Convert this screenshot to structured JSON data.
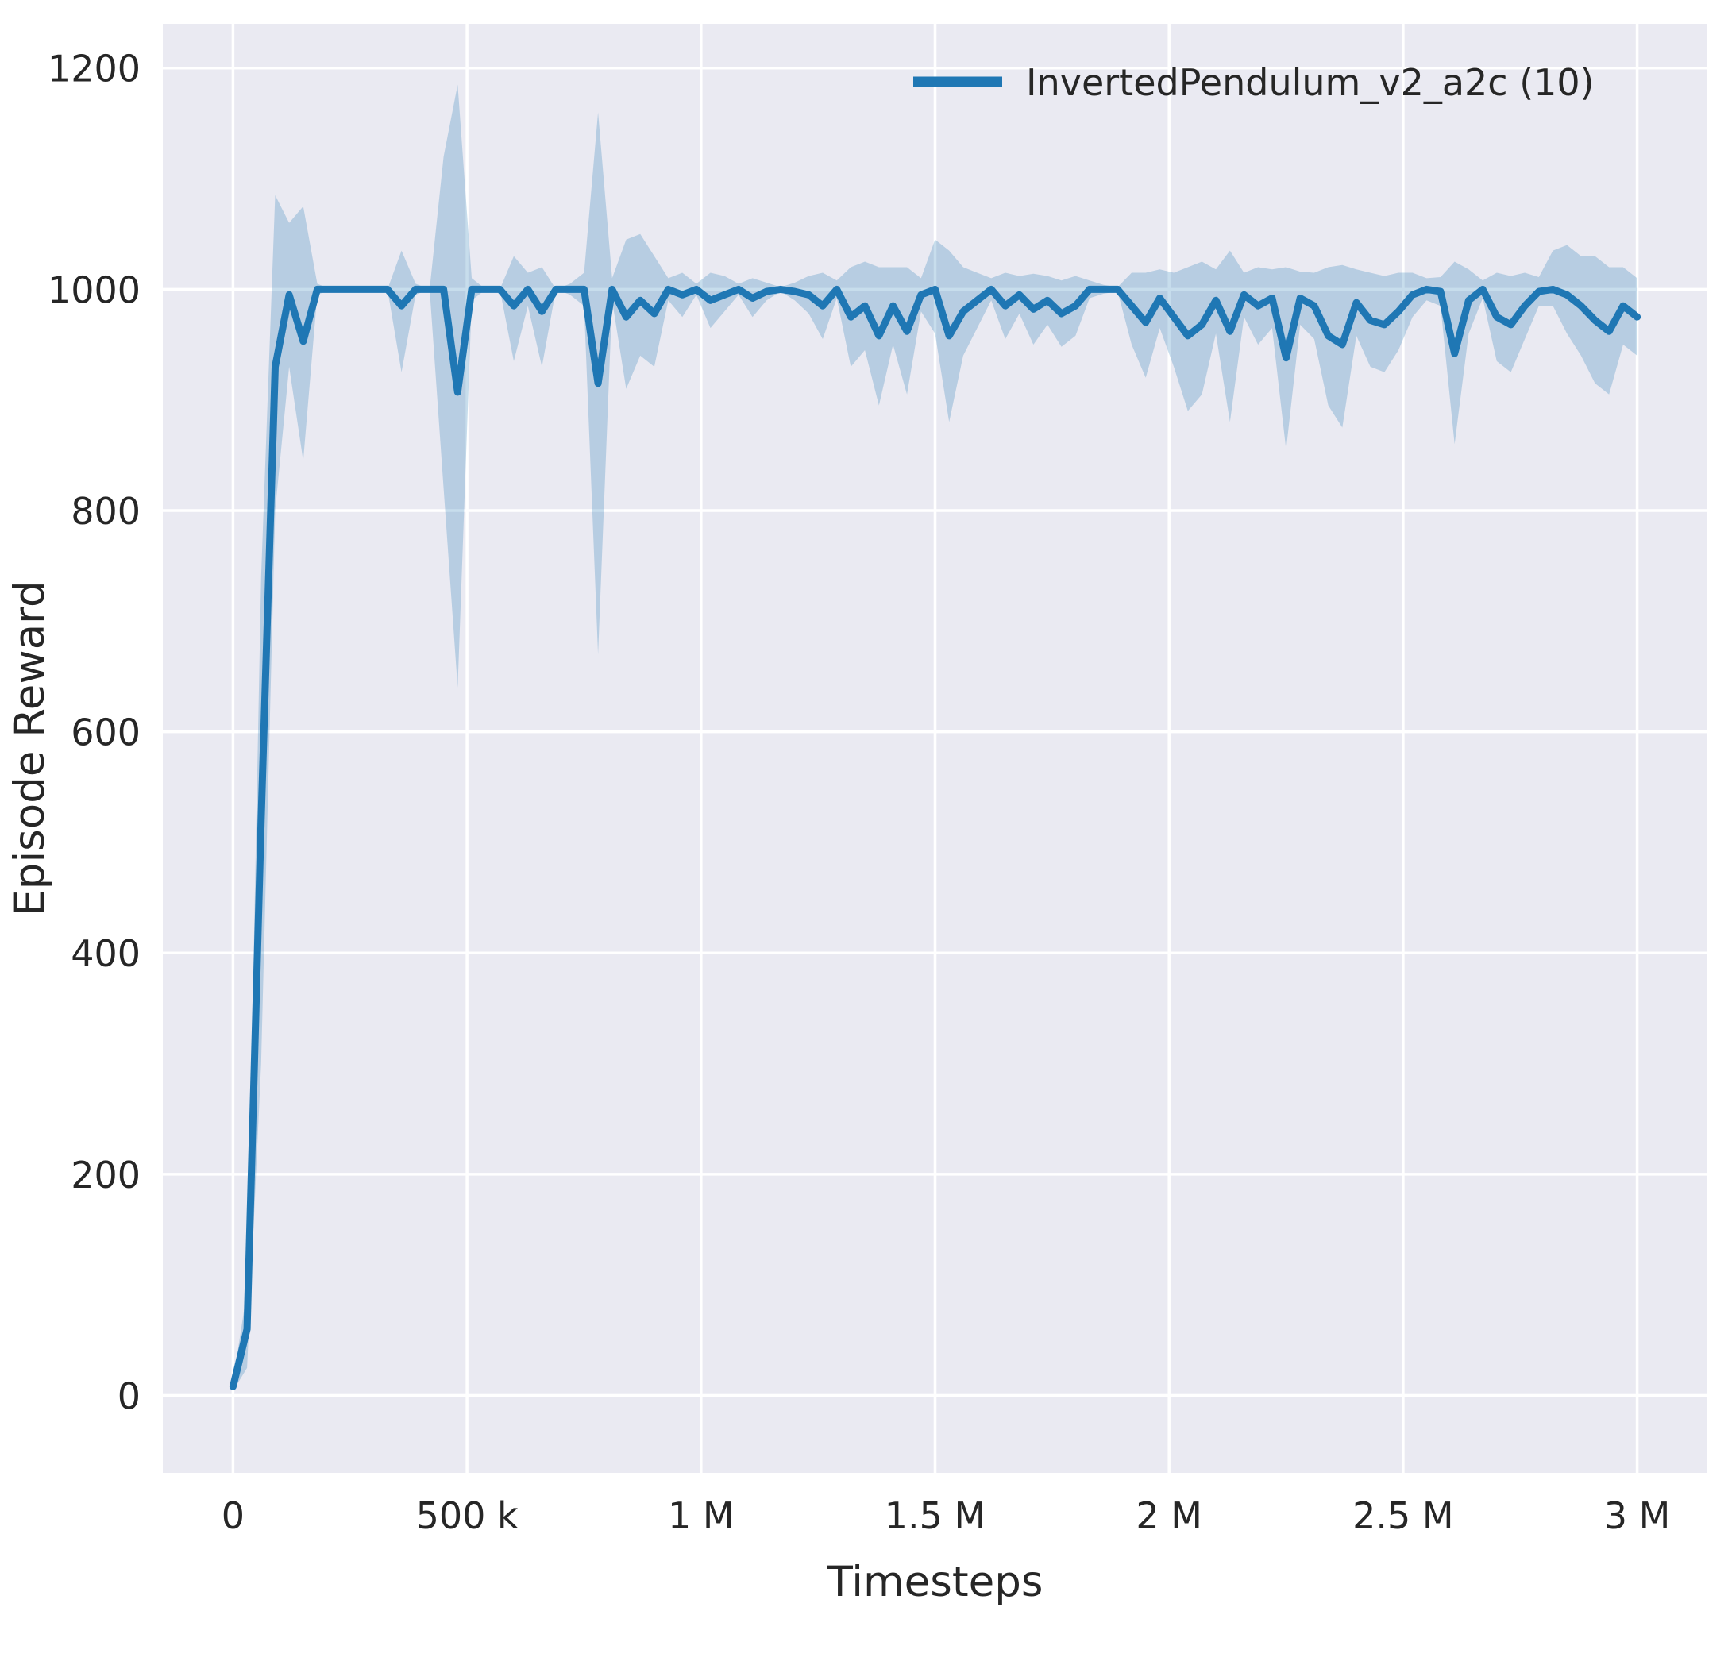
{
  "figure": {
    "background": "#ffffff",
    "plot_background": "#eaeaf2",
    "grid_color": "#ffffff",
    "text_color": "#262626",
    "line_color": "#1f77b4",
    "band_alpha": 0.25
  },
  "chart_data": {
    "type": "line",
    "title": "",
    "xlabel": "Timesteps",
    "ylabel": "Episode Reward",
    "grid": true,
    "legend_position": "upper right",
    "legend": [
      {
        "label": "InvertedPendulum_v2_a2c (10)",
        "color": "#1f77b4"
      }
    ],
    "xlim": [
      -150000,
      3150000
    ],
    "ylim": [
      -70,
      1240
    ],
    "x_ticks": [
      0,
      500000,
      1000000,
      1500000,
      2000000,
      2500000,
      3000000
    ],
    "x_tick_labels": [
      "0",
      "500 k",
      "1 M",
      "1.5 M",
      "2 M",
      "2.5 M",
      "3 M"
    ],
    "y_ticks": [
      0,
      200,
      400,
      600,
      800,
      1000,
      1200
    ],
    "y_tick_labels": [
      "0",
      "200",
      "400",
      "600",
      "800",
      "1000",
      "1200"
    ],
    "series": [
      {
        "name": "InvertedPendulum_v2_a2c (10)",
        "x": [
          0,
          30000,
          60000,
          90000,
          120000,
          150000,
          180000,
          210000,
          240000,
          270000,
          300000,
          330000,
          360000,
          390000,
          420000,
          450000,
          480000,
          510000,
          540000,
          570000,
          600000,
          630000,
          660000,
          690000,
          720000,
          750000,
          780000,
          810000,
          840000,
          870000,
          900000,
          930000,
          960000,
          990000,
          1020000,
          1050000,
          1080000,
          1110000,
          1140000,
          1170000,
          1200000,
          1230000,
          1260000,
          1290000,
          1320000,
          1350000,
          1380000,
          1410000,
          1440000,
          1470000,
          1500000,
          1530000,
          1560000,
          1590000,
          1620000,
          1650000,
          1680000,
          1710000,
          1740000,
          1770000,
          1800000,
          1830000,
          1860000,
          1890000,
          1920000,
          1950000,
          1980000,
          2010000,
          2040000,
          2070000,
          2100000,
          2130000,
          2160000,
          2190000,
          2220000,
          2250000,
          2280000,
          2310000,
          2340000,
          2370000,
          2400000,
          2430000,
          2460000,
          2490000,
          2520000,
          2550000,
          2580000,
          2610000,
          2640000,
          2670000,
          2700000,
          2730000,
          2760000,
          2790000,
          2820000,
          2850000,
          2880000,
          2910000,
          2940000,
          2970000,
          3000000
        ],
        "mean": [
          8,
          60,
          520,
          930,
          995,
          953,
          1000,
          1000,
          1000,
          1000,
          1000,
          1000,
          985,
          1000,
          1000,
          1000,
          907,
          1000,
          1000,
          1000,
          985,
          1000,
          980,
          1000,
          1000,
          1000,
          915,
          1000,
          975,
          990,
          978,
          1000,
          995,
          1000,
          990,
          995,
          1000,
          992,
          998,
          1000,
          998,
          995,
          985,
          1000,
          975,
          985,
          958,
          985,
          962,
          995,
          1000,
          958,
          980,
          990,
          1000,
          985,
          995,
          982,
          990,
          978,
          985,
          1000,
          1000,
          1000,
          985,
          970,
          992,
          975,
          958,
          968,
          990,
          962,
          995,
          985,
          992,
          938,
          992,
          985,
          958,
          950,
          988,
          972,
          968,
          980,
          995,
          1000,
          998,
          942,
          990,
          1000,
          975,
          968,
          985,
          998,
          1000,
          995,
          985,
          972,
          962,
          985,
          975
        ],
        "band_low": [
          4,
          25,
          300,
          800,
          930,
          845,
          995,
          1000,
          1000,
          1000,
          1000,
          1000,
          925,
          995,
          1000,
          820,
          640,
          990,
          1000,
          1000,
          935,
          985,
          930,
          1000,
          995,
          985,
          670,
          990,
          910,
          940,
          930,
          990,
          975,
          995,
          965,
          980,
          995,
          975,
          990,
          998,
          990,
          978,
          955,
          992,
          930,
          945,
          895,
          950,
          905,
          980,
          960,
          880,
          940,
          965,
          990,
          955,
          978,
          950,
          968,
          948,
          958,
          992,
          996,
          998,
          950,
          920,
          965,
          930,
          890,
          905,
          960,
          880,
          975,
          950,
          965,
          855,
          968,
          955,
          895,
          875,
          958,
          930,
          925,
          945,
          975,
          990,
          985,
          860,
          960,
          992,
          935,
          925,
          955,
          985,
          985,
          960,
          940,
          915,
          905,
          950,
          940
        ],
        "band_high": [
          12,
          95,
          740,
          1085,
          1060,
          1075,
          1005,
          1000,
          1000,
          1000,
          1000,
          1000,
          1035,
          1005,
          1000,
          1120,
          1185,
          1010,
          1000,
          1000,
          1030,
          1015,
          1020,
          1000,
          1005,
          1015,
          1160,
          1010,
          1045,
          1050,
          1030,
          1010,
          1015,
          1005,
          1015,
          1012,
          1005,
          1010,
          1006,
          1002,
          1006,
          1012,
          1015,
          1008,
          1020,
          1025,
          1020,
          1020,
          1020,
          1010,
          1045,
          1035,
          1020,
          1015,
          1010,
          1015,
          1012,
          1014,
          1012,
          1008,
          1012,
          1008,
          1004,
          1002,
          1015,
          1015,
          1018,
          1015,
          1020,
          1025,
          1018,
          1035,
          1015,
          1020,
          1018,
          1020,
          1016,
          1015,
          1020,
          1022,
          1018,
          1015,
          1012,
          1015,
          1015,
          1010,
          1011,
          1025,
          1018,
          1008,
          1015,
          1012,
          1015,
          1011,
          1035,
          1040,
          1030,
          1030,
          1020,
          1020,
          1010
        ]
      }
    ]
  }
}
